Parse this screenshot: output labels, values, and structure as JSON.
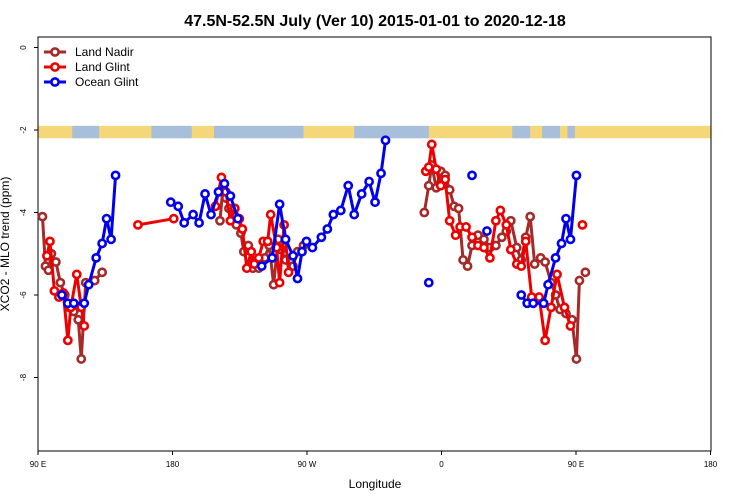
{
  "chart_data": {
    "type": "line",
    "title": "47.5N-52.5N July (Ver 10)   2015-01-01 to 2020-12-18",
    "xlabel": "Longitude",
    "ylabel": "XCO2 - MLO trend (ppm)",
    "xlim": [
      90,
      450
    ],
    "ylim": [
      -10,
      0
    ],
    "y_reversed": true,
    "xticks": [
      {
        "value": 90,
        "label": "90 E"
      },
      {
        "value": 180,
        "label": "180"
      },
      {
        "value": 270,
        "label": "90 W"
      },
      {
        "value": 360,
        "label": "0"
      },
      {
        "value": 450,
        "label": "90 E"
      },
      {
        "value": 540,
        "label": "180"
      }
    ],
    "yticks": [
      {
        "value": 0,
        "label": "0"
      },
      {
        "value": -2,
        "label": "-2"
      },
      {
        "value": -4,
        "label": "-4"
      },
      {
        "value": -6,
        "label": "-6"
      },
      {
        "value": -8,
        "label": "-8"
      }
    ],
    "landmask_band": {
      "y_top": -1.9,
      "y_bottom": -2.2,
      "land_color": "#f5d77a",
      "ocean_color": "#a8bfdc"
    },
    "legend_position": "top-left",
    "series": [
      {
        "name": "Land Nadir",
        "color": "#a52a2a",
        "segments": [
          [
            [
              93,
              -4.1
            ],
            [
              95,
              -5.3
            ],
            [
              97,
              -5.4
            ],
            [
              99,
              -5.0
            ],
            [
              102,
              -5.2
            ],
            [
              105,
              -5.7
            ],
            [
              108,
              -6.0
            ],
            [
              111,
              -6.3
            ],
            [
              114,
              -6.4
            ],
            [
              117,
              -6.6
            ],
            [
              119,
              -7.55
            ],
            [
              122,
              -5.7
            ],
            [
              128,
              -5.65
            ],
            [
              133,
              -5.45
            ]
          ],
          [
            [
              212,
              -4.2
            ],
            [
              214,
              -3.4
            ],
            [
              216,
              -3.65
            ],
            [
              218,
              -3.9
            ],
            [
              221,
              -4.1
            ],
            [
              223,
              -4.3
            ],
            [
              226,
              -4.5
            ],
            [
              228,
              -4.95
            ],
            [
              231,
              -4.8
            ],
            [
              234,
              -5.35
            ],
            [
              238,
              -5.35
            ],
            [
              242,
              -5.1
            ],
            [
              245,
              -4.8
            ],
            [
              248,
              -5.75
            ],
            [
              251,
              -4.65
            ],
            [
              253,
              -4.9
            ],
            [
              256,
              -5.15
            ],
            [
              261,
              -5.3
            ],
            [
              264,
              -4.95
            ],
            [
              268,
              -4.8
            ]
          ],
          [
            [
              349,
              -4.0
            ],
            [
              352,
              -3.35
            ],
            [
              354,
              -2.85
            ],
            [
              357,
              -3.4
            ],
            [
              360,
              -3.0
            ],
            [
              363,
              -3.1
            ],
            [
              366,
              -3.45
            ],
            [
              369,
              -3.85
            ],
            [
              372,
              -3.9
            ],
            [
              375,
              -5.15
            ],
            [
              378,
              -5.3
            ],
            [
              381,
              -4.8
            ],
            [
              385,
              -4.55
            ],
            [
              389,
              -4.65
            ],
            [
              393,
              -4.85
            ],
            [
              397,
              -4.8
            ],
            [
              401,
              -4.6
            ],
            [
              404,
              -4.45
            ],
            [
              407,
              -4.2
            ],
            [
              411,
              -4.85
            ],
            [
              414,
              -5.15
            ],
            [
              417,
              -4.6
            ],
            [
              420,
              -4.1
            ],
            [
              423,
              -5.25
            ],
            [
              427,
              -5.1
            ],
            [
              430,
              -5.2
            ],
            [
              434,
              -5.7
            ],
            [
              437,
              -6.0
            ],
            [
              440,
              -6.35
            ],
            [
              444,
              -6.45
            ],
            [
              448,
              -6.6
            ],
            [
              451,
              -7.55
            ],
            [
              453,
              -5.65
            ]
          ],
          [
            [
              457,
              -5.45
            ]
          ]
        ]
      },
      {
        "name": "Land Glint",
        "color": "#ee0000",
        "segments": [
          [
            [
              96,
              -5.05
            ],
            [
              98,
              -4.7
            ],
            [
              101,
              -5.9
            ],
            [
              104,
              -6.05
            ],
            [
              107,
              -5.95
            ],
            [
              110,
              -7.1
            ],
            [
              112,
              -6.3
            ],
            [
              116,
              -5.5
            ],
            [
              119,
              -6.3
            ],
            [
              121,
              -6.75
            ]
          ],
          [
            [
              157,
              -4.3
            ],
            [
              181,
              -4.15
            ]
          ],
          [
            [
              209,
              -3.85
            ],
            [
              213,
              -3.15
            ],
            [
              216,
              -3.5
            ],
            [
              219,
              -4.2
            ],
            [
              222,
              -3.9
            ],
            [
              225,
              -4.15
            ],
            [
              227,
              -4.4
            ],
            [
              230,
              -5.35
            ],
            [
              233,
              -4.95
            ],
            [
              235,
              -5.25
            ],
            [
              238,
              -5.1
            ],
            [
              241,
              -4.7
            ],
            [
              244,
              -4.7
            ],
            [
              246,
              -4.05
            ],
            [
              250,
              -4.85
            ],
            [
              252,
              -5.7
            ],
            [
              255,
              -4.3
            ],
            [
              258,
              -5.45
            ]
          ],
          [
            [
              350,
              -3.0
            ],
            [
              352,
              -2.9
            ],
            [
              354,
              -2.35
            ],
            [
              357,
              -2.95
            ],
            [
              360,
              -3.35
            ],
            [
              363,
              -3.2
            ],
            [
              366,
              -4.2
            ],
            [
              370,
              -4.55
            ],
            [
              373,
              -4.35
            ],
            [
              377,
              -4.35
            ],
            [
              381,
              -4.6
            ],
            [
              385,
              -4.8
            ],
            [
              389,
              -4.85
            ],
            [
              393,
              -5.1
            ],
            [
              397,
              -4.2
            ],
            [
              400,
              -3.95
            ],
            [
              404,
              -4.3
            ],
            [
              407,
              -4.9
            ],
            [
              411,
              -5.25
            ],
            [
              414,
              -5.3
            ],
            [
              417,
              -4.7
            ],
            [
              421,
              -6.05
            ],
            [
              426,
              -6.05
            ],
            [
              430,
              -7.1
            ],
            [
              434,
              -6.3
            ],
            [
              438,
              -5.5
            ],
            [
              443,
              -6.3
            ],
            [
              447,
              -6.75
            ]
          ],
          [
            [
              455,
              -4.3
            ]
          ]
        ]
      },
      {
        "name": "Ocean Glint",
        "color": "#0000ee",
        "segments": [
          [
            [
              106,
              -6.0
            ],
            [
              110,
              -6.2
            ],
            [
              114,
              -6.2
            ],
            [
              121,
              -6.2
            ],
            [
              124,
              -5.75
            ],
            [
              129,
              -5.1
            ],
            [
              133,
              -4.75
            ],
            [
              136,
              -4.15
            ],
            [
              139,
              -4.65
            ],
            [
              142,
              -3.1
            ]
          ],
          [
            [
              179,
              -3.75
            ],
            [
              184,
              -3.85
            ],
            [
              188,
              -4.25
            ],
            [
              194,
              -4.05
            ],
            [
              198,
              -4.25
            ],
            [
              202,
              -3.55
            ],
            [
              206,
              -4.05
            ],
            [
              211,
              -3.5
            ],
            [
              215,
              -3.3
            ],
            [
              219,
              -3.6
            ],
            [
              224,
              -4.15
            ]
          ],
          [
            [
              240,
              -5.3
            ],
            [
              247,
              -5.1
            ],
            [
              252,
              -3.8
            ],
            [
              256,
              -4.65
            ],
            [
              261,
              -5.05
            ],
            [
              264,
              -5.6
            ],
            [
              267,
              -4.95
            ],
            [
              270,
              -4.7
            ],
            [
              274,
              -4.85
            ],
            [
              280,
              -4.6
            ],
            [
              284,
              -4.4
            ],
            [
              288,
              -4.05
            ],
            [
              293,
              -3.95
            ],
            [
              298,
              -3.35
            ],
            [
              302,
              -4.05
            ],
            [
              307,
              -3.55
            ],
            [
              312,
              -3.25
            ],
            [
              316,
              -3.75
            ],
            [
              320,
              -3.05
            ],
            [
              323,
              -2.25
            ]
          ],
          [
            [
              352,
              -5.7
            ]
          ],
          [
            [
              381,
              -3.1
            ]
          ],
          [
            [
              391,
              -4.45
            ]
          ],
          [
            [
              414,
              -6.0
            ],
            [
              418,
              -6.2
            ],
            [
              422,
              -6.2
            ],
            [
              429,
              -6.2
            ],
            [
              432,
              -5.75
            ],
            [
              437,
              -5.1
            ],
            [
              441,
              -4.75
            ],
            [
              444,
              -4.15
            ],
            [
              447,
              -4.65
            ],
            [
              451,
              -3.1
            ]
          ]
        ]
      }
    ]
  }
}
